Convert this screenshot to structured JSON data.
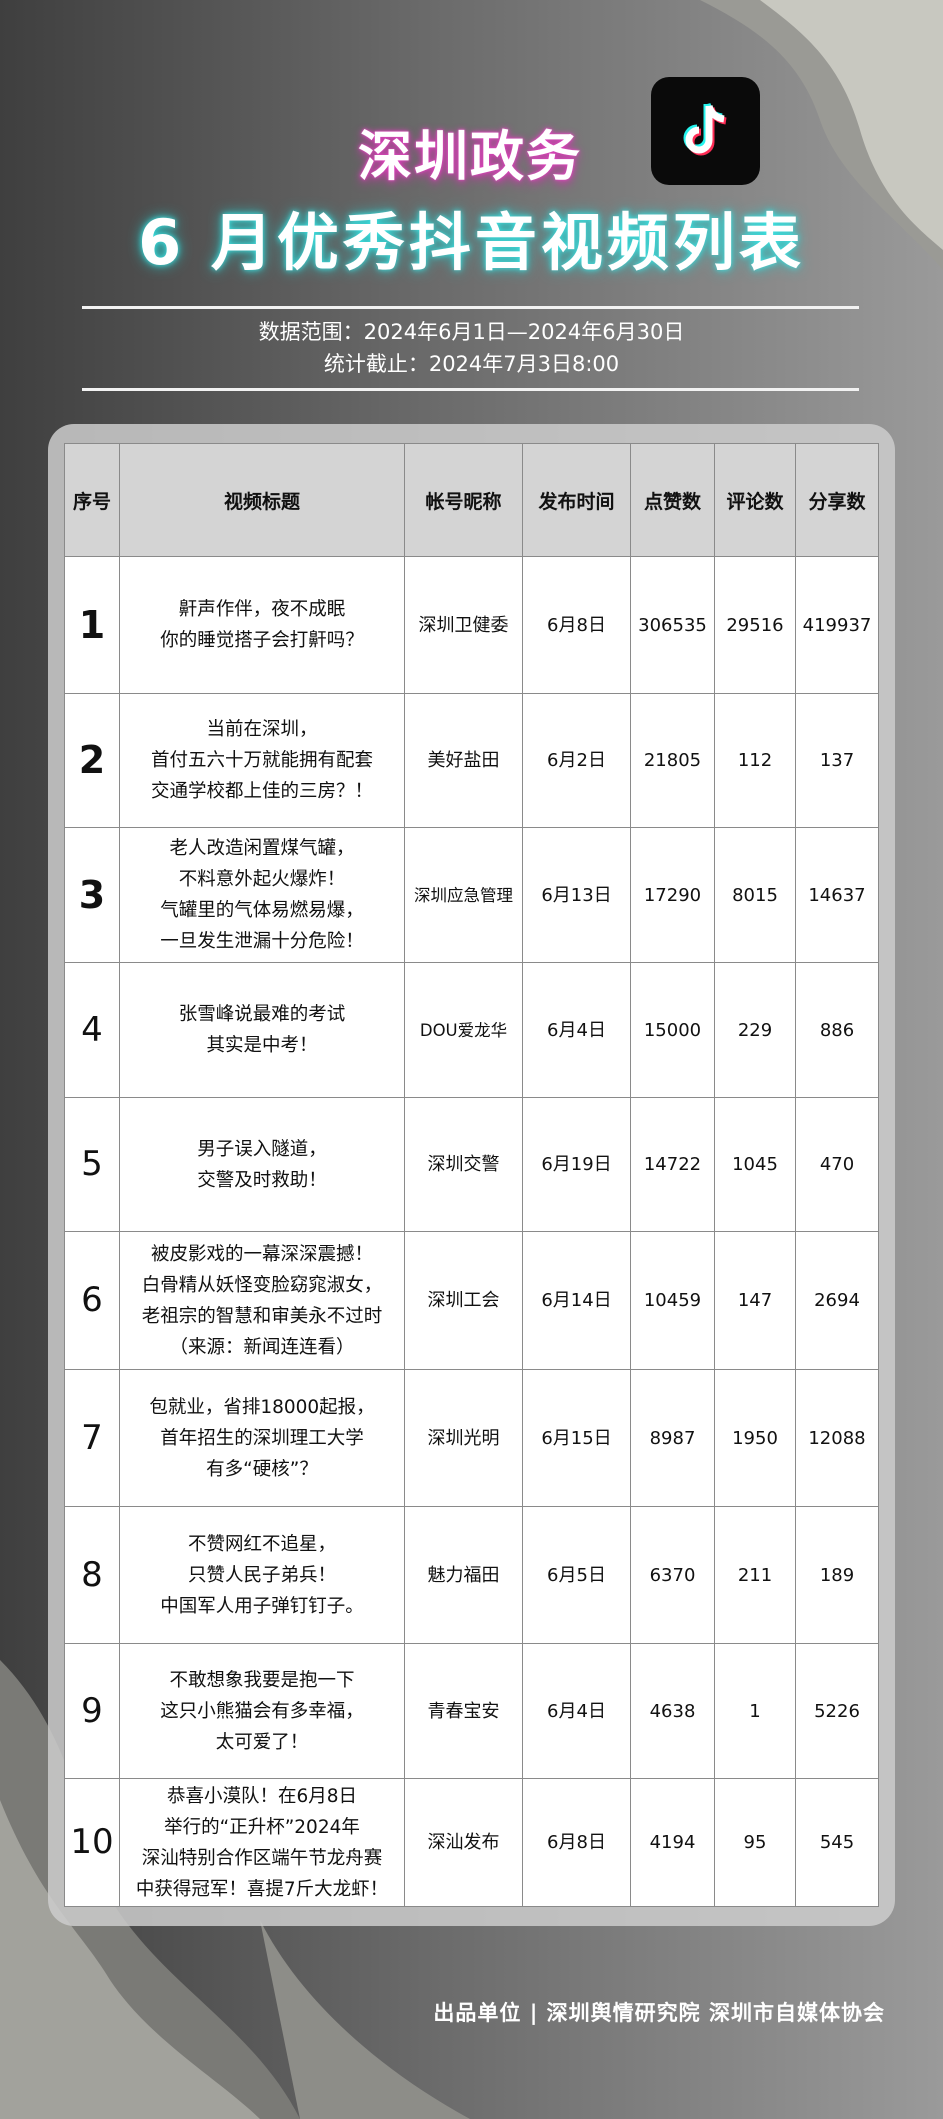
{
  "header": {
    "line1": "深圳政务",
    "line2": "6 月优秀抖音视频列表",
    "logo": "douyin-logo",
    "range": "数据范围：2024年6月1日—2024年6月30日",
    "cutoff": "统计截止：2024年7月3日8:00"
  },
  "colors": {
    "pink_glow": "#e040c0",
    "cyan_glow": "#3ee8e8",
    "header_bg": "#d4d4d4"
  },
  "table": {
    "columns": [
      "序号",
      "视频标题",
      "帐号昵称",
      "发布时间",
      "点赞数",
      "评论数",
      "分享数"
    ],
    "rows": [
      {
        "no": "1",
        "title": "鼾声作伴，夜不成眠\n你的睡觉搭子会打鼾吗？",
        "account": "深圳卫健委",
        "date": "6月8日",
        "likes": "306535",
        "comments": "29516",
        "shares": "419937"
      },
      {
        "no": "2",
        "title": "当前在深圳，\n首付五六十万就能拥有配套\n交通学校都上佳的三房？！",
        "account": "美好盐田",
        "date": "6月2日",
        "likes": "21805",
        "comments": "112",
        "shares": "137"
      },
      {
        "no": "3",
        "title": "老人改造闲置煤气罐，\n不料意外起火爆炸！\n气罐里的气体易燃易爆，\n一旦发生泄漏十分危险！",
        "account": "深圳应急管理",
        "date": "6月13日",
        "likes": "17290",
        "comments": "8015",
        "shares": "14637"
      },
      {
        "no": "4",
        "title": "张雪峰说最难的考试\n其实是中考！",
        "account": "DOU爱龙华",
        "date": "6月4日",
        "likes": "15000",
        "comments": "229",
        "shares": "886"
      },
      {
        "no": "5",
        "title": "男子误入隧道，\n交警及时救助！",
        "account": "深圳交警",
        "date": "6月19日",
        "likes": "14722",
        "comments": "1045",
        "shares": "470"
      },
      {
        "no": "6",
        "title": "被皮影戏的一幕深深震撼！\n白骨精从妖怪变脸窈窕淑女，\n老祖宗的智慧和审美永不过时\n（来源：新闻连连看）",
        "account": "深圳工会",
        "date": "6月14日",
        "likes": "10459",
        "comments": "147",
        "shares": "2694"
      },
      {
        "no": "7",
        "title": "包就业，省排18000起报，\n首年招生的深圳理工大学\n有多“硬核”？",
        "account": "深圳光明",
        "date": "6月15日",
        "likes": "8987",
        "comments": "1950",
        "shares": "12088"
      },
      {
        "no": "8",
        "title": "不赞网红不追星，\n只赞人民子弟兵！\n中国军人用子弹钉钉子。",
        "account": "魅力福田",
        "date": "6月5日",
        "likes": "6370",
        "comments": "211",
        "shares": "189"
      },
      {
        "no": "9",
        "title": "不敢想象我要是抱一下\n这只小熊猫会有多幸福，\n太可爱了！",
        "account": "青春宝安",
        "date": "6月4日",
        "likes": "4638",
        "comments": "1",
        "shares": "5226"
      },
      {
        "no": "10",
        "title": "恭喜小漠队！在6月8日\n举行的“正升杯”2024年\n深汕特别合作区端午节龙舟赛\n中获得冠军！喜提7斤大龙虾！",
        "account": "深汕发布",
        "date": "6月8日",
        "likes": "4194",
        "comments": "95",
        "shares": "545"
      }
    ]
  },
  "footer": "出品单位 | 深圳舆情研究院 深圳市自媒体协会"
}
